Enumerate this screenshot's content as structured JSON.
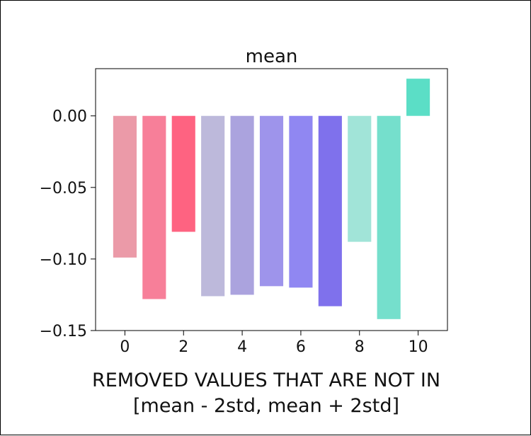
{
  "chart_data": {
    "type": "bar",
    "title": "mean",
    "xlabel": "",
    "ylabel": "",
    "x": [
      0,
      1,
      2,
      3,
      4,
      5,
      6,
      7,
      8,
      9,
      10
    ],
    "values": [
      -0.099,
      -0.128,
      -0.081,
      -0.126,
      -0.125,
      -0.119,
      -0.12,
      -0.133,
      -0.088,
      -0.142,
      0.026
    ],
    "colors": [
      "#eb9aa8",
      "#f77f99",
      "#fe6381",
      "#bdb9db",
      "#aba3de",
      "#9e94eb",
      "#9087f2",
      "#7f71ec",
      "#a1e4d8",
      "#75dfcc",
      "#5bdec6"
    ],
    "xlim": [
      -1,
      11
    ],
    "ylim": [
      -0.15,
      0.033
    ],
    "xticks": [
      0,
      2,
      4,
      6,
      8,
      10
    ],
    "xtick_labels": [
      "0",
      "2",
      "4",
      "6",
      "8",
      "10"
    ],
    "yticks": [
      0.0,
      -0.05,
      -0.1,
      -0.15
    ],
    "ytick_labels": [
      "0.00",
      "−0.05",
      "−0.10",
      "−0.15"
    ],
    "grid": false,
    "legend": null
  },
  "caption": {
    "line1": "REMOVED VALUES THAT ARE NOT IN",
    "line2": "[mean - 2std, mean + 2std]"
  }
}
